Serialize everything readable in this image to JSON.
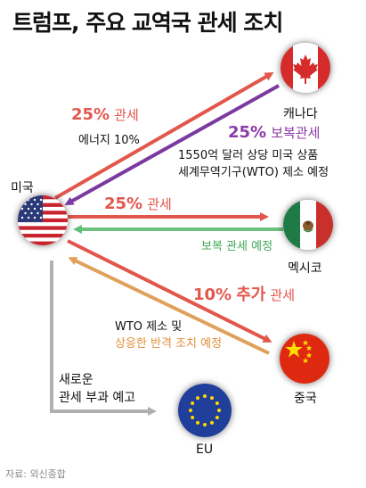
{
  "title": "트럼프, 주요 교역국 관세 조치",
  "countries": {
    "us": "미국",
    "canada": "캐나다",
    "mexico": "멕시코",
    "china": "중국",
    "eu": "EU"
  },
  "canada_tariff": {
    "percent": "25%",
    "word": "관세",
    "note": "에너지 10%"
  },
  "canada_retaliation": {
    "percent": "25%",
    "word": "보복관세",
    "line1": "1550억 달러 상당 미국 상품",
    "line2": "세계무역기구(WTO) 제소 예정"
  },
  "mexico_tariff": {
    "percent": "25%",
    "word": "관세"
  },
  "mexico_retaliation": "보복 관세 예정",
  "china_tariff": {
    "percent": "10%",
    "extra": "추가",
    "word": "관세"
  },
  "china_retaliation": {
    "line1": "WTO 제소 및",
    "line2": "상응한 반격 조치 예정"
  },
  "eu_notice": {
    "line1": "새로운",
    "line2": "관세 부과 예고"
  },
  "source": "자료: 외신종합",
  "colors": {
    "tariff": "#e2574c",
    "canada_retaliation": "#7b3aa0",
    "mexico_retaliation": "#3fa857",
    "china_retaliation": "#e0903a",
    "eu_notice": "#b0b0b0"
  }
}
